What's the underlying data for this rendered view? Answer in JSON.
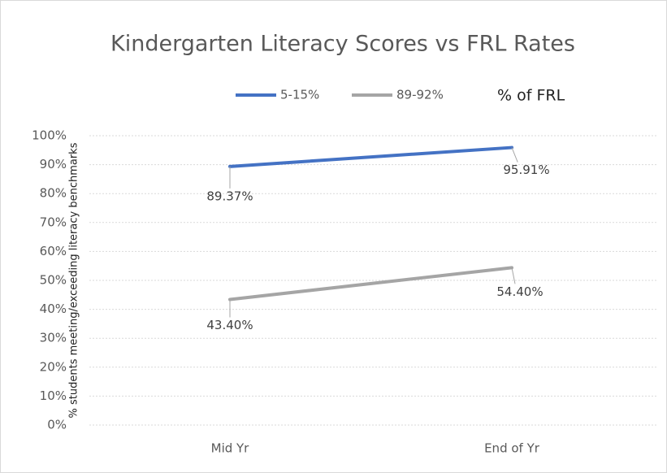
{
  "chart_data": {
    "type": "line",
    "title": "Kindergarten Literacy Scores vs FRL Rates",
    "annotation": "% of FRL",
    "y_label": "% students meeting/exceeding literacy benchmarks",
    "categories": [
      "Mid Yr",
      "End of Yr"
    ],
    "series": [
      {
        "name": "5-15%",
        "color": "#4472c4",
        "values": [
          89.37,
          95.91
        ],
        "value_labels": [
          "89.37%",
          "95.91%"
        ]
      },
      {
        "name": "89-92%",
        "color": "#a5a5a5",
        "values": [
          43.4,
          54.4
        ],
        "value_labels": [
          "43.40%",
          "54.40%"
        ]
      }
    ],
    "ylim": [
      0,
      100
    ],
    "yticks": [
      {
        "value": 0,
        "label": "0%"
      },
      {
        "value": 10,
        "label": "10%"
      },
      {
        "value": 20,
        "label": "20%"
      },
      {
        "value": 30,
        "label": "30%"
      },
      {
        "value": 40,
        "label": "40%"
      },
      {
        "value": 50,
        "label": "50%"
      },
      {
        "value": 60,
        "label": "60%"
      },
      {
        "value": 70,
        "label": "70%"
      },
      {
        "value": 80,
        "label": "80%"
      },
      {
        "value": 90,
        "label": "90%"
      },
      {
        "value": 100,
        "label": "100%"
      }
    ],
    "grid": true
  }
}
